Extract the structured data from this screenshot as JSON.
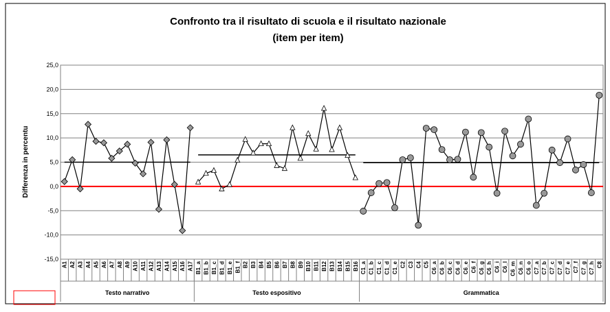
{
  "chart_data": {
    "type": "line",
    "title": "Confronto tra il risultato di scuola e il risultato nazionale",
    "subtitle": "(item per item)",
    "y_label": "Differenza in percentu",
    "ylim": [
      -15,
      25
    ],
    "yticks": [
      {
        "value": -15,
        "label": "-15,0"
      },
      {
        "value": -10,
        "label": "-10,0"
      },
      {
        "value": -5,
        "label": "-5,0"
      },
      {
        "value": 0,
        "label": "0,0"
      },
      {
        "value": 5,
        "label": "5,0"
      },
      {
        "value": 10,
        "label": "10,0"
      },
      {
        "value": 15,
        "label": "15,0"
      },
      {
        "value": 20,
        "label": "20,0"
      },
      {
        "value": 25,
        "label": "25,0"
      }
    ],
    "grid": true,
    "reference": {
      "value": 0,
      "color": "#ff0000"
    },
    "groups": [
      {
        "name": "Testo narrativo",
        "marker": "diamond",
        "marker_fill": "#999999",
        "average": 5.0,
        "categories": [
          "A1",
          "A2",
          "A3",
          "A4",
          "A5",
          "A6",
          "A7",
          "A8",
          "A9",
          "A10",
          "A11",
          "A12",
          "A13",
          "A14",
          "A15",
          "A16",
          "A17"
        ],
        "values": [
          1.0,
          5.5,
          -0.5,
          12.8,
          9.3,
          9.0,
          5.8,
          7.3,
          8.7,
          4.8,
          2.6,
          9.1,
          -4.7,
          9.6,
          0.4,
          -9.1,
          12.1
        ]
      },
      {
        "name": "Testo espositivo",
        "marker": "triangle",
        "marker_fill": "#ffffff",
        "average": 6.5,
        "categories": [
          "B1_a",
          "B1_b",
          "B1_c",
          "B1_d",
          "B1_e",
          "B1_f",
          "B2",
          "B3",
          "B4",
          "B5",
          "B6",
          "B7",
          "B8",
          "B9",
          "B10",
          "B11",
          "B12",
          "B13",
          "B14",
          "B15",
          "B16"
        ],
        "values": [
          0.9,
          2.7,
          3.3,
          -0.5,
          0.4,
          5.4,
          9.7,
          6.9,
          8.8,
          8.8,
          4.3,
          3.7,
          12.1,
          5.8,
          10.9,
          7.7,
          16.1,
          7.6,
          12.1,
          6.4,
          1.8
        ]
      },
      {
        "name": "Grammatica",
        "marker": "circle",
        "marker_fill": "#999999",
        "average": 4.9,
        "categories": [
          "C1_a",
          "C1_b",
          "C1_c",
          "C1_d",
          "C1_e",
          "C2",
          "C3",
          "C4",
          "C5",
          "C6_a",
          "C6_b",
          "C6_c",
          "C6_d",
          "C6_e",
          "C6_f",
          "C6_g",
          "C6_h",
          "C6_i",
          "C6_l",
          "C6_m",
          "C6_n",
          "C6_o",
          "C7_a",
          "C7_b",
          "C7_c",
          "C7_d",
          "C7_e",
          "C7_f",
          "C7_g",
          "C7_h",
          "C8"
        ],
        "values": [
          -5.1,
          -1.3,
          0.6,
          0.8,
          -4.4,
          5.5,
          5.9,
          -8.0,
          12.0,
          11.7,
          7.6,
          5.5,
          5.6,
          11.2,
          1.9,
          11.1,
          8.1,
          -1.4,
          11.4,
          6.3,
          8.7,
          13.9,
          -3.9,
          -1.4,
          7.5,
          4.9,
          9.8,
          3.4,
          4.5,
          -1.3,
          18.8
        ]
      }
    ]
  }
}
